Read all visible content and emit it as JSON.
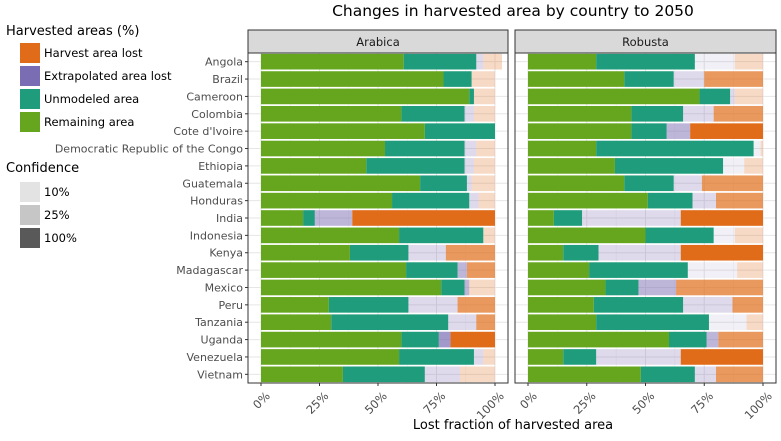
{
  "chart_data": {
    "type": "bar",
    "orientation": "horizontal",
    "stacked": true,
    "title": "Changes in harvested area by country to 2050",
    "xlabel": "Lost fraction of harvested area",
    "ylabel": "",
    "xlim": [
      0,
      1
    ],
    "x_ticks": [
      "0%",
      "25%",
      "50%",
      "75%",
      "100%"
    ],
    "grid": "on",
    "legend_position": "left",
    "facets": [
      "Arabica",
      "Robusta"
    ],
    "categories": [
      "Angola",
      "Brazil",
      "Cameroon",
      "Colombia",
      "Cote d'Ivoire",
      "Democratic Republic of the Congo",
      "Ethiopia",
      "Guatemala",
      "Honduras",
      "India",
      "Indonesia",
      "Kenya",
      "Madagascar",
      "Mexico",
      "Peru",
      "Tanzania",
      "Uganda",
      "Venezuela",
      "Vietnam"
    ],
    "legend": {
      "fill_title": "Harvested areas (%)",
      "fill_items": [
        {
          "label": "Harvest area lost",
          "color": "#e06c1a"
        },
        {
          "label": "Extrapolated area lost",
          "color": "#7b6db3"
        },
        {
          "label": "Unmodeled area",
          "color": "#1f9c7c"
        },
        {
          "label": "Remaining area",
          "color": "#66a61e"
        }
      ],
      "alpha_title": "Confidence",
      "alpha_items": [
        {
          "label": "10%",
          "color": "#e3e3e3"
        },
        {
          "label": "25%",
          "color": "#c6c6c6"
        },
        {
          "label": "100%",
          "color": "#595959"
        }
      ]
    },
    "series_order": [
      "Remaining area",
      "Unmodeled area",
      "Extrapolated area lost",
      "Harvest area lost"
    ],
    "panels": [
      {
        "name": "Arabica",
        "segments": [
          [
            [
              0.61,
              "R",
              1
            ],
            [
              0.31,
              "U",
              1
            ],
            [
              0.03,
              "E",
              0.25
            ],
            [
              0.08,
              "H",
              0.25
            ]
          ],
          [
            [
              0.78,
              "R",
              1
            ],
            [
              0.12,
              "U",
              1
            ],
            [
              0.1,
              "H",
              0.25
            ]
          ],
          [
            [
              0.89,
              "R",
              1
            ],
            [
              0.02,
              "U",
              1
            ],
            [
              0.09,
              "H",
              0.25
            ]
          ],
          [
            [
              0.6,
              "R",
              1
            ],
            [
              0.27,
              "U",
              1
            ],
            [
              0.04,
              "E",
              0.25
            ],
            [
              0.09,
              "H",
              0.25
            ]
          ],
          [
            [
              0.7,
              "R",
              1
            ],
            [
              0.3,
              "U",
              1
            ]
          ],
          [
            [
              0.53,
              "R",
              1
            ],
            [
              0.34,
              "U",
              1
            ],
            [
              0.05,
              "E",
              0.25
            ],
            [
              0.08,
              "H",
              0.25
            ]
          ],
          [
            [
              0.45,
              "R",
              1
            ],
            [
              0.42,
              "U",
              1
            ],
            [
              0.04,
              "E",
              0.25
            ],
            [
              0.09,
              "H",
              0.25
            ]
          ],
          [
            [
              0.68,
              "R",
              1
            ],
            [
              0.2,
              "U",
              1
            ],
            [
              0.02,
              "E",
              0.25
            ],
            [
              0.1,
              "H",
              0.25
            ]
          ],
          [
            [
              0.56,
              "R",
              1
            ],
            [
              0.33,
              "U",
              1
            ],
            [
              0.04,
              "E",
              0.25
            ],
            [
              0.07,
              "H",
              0.25
            ]
          ],
          [
            [
              0.18,
              "R",
              1
            ],
            [
              0.05,
              "U",
              1
            ],
            [
              0.16,
              "E",
              0.5
            ],
            [
              0.61,
              "H",
              1
            ]
          ],
          [
            [
              0.59,
              "R",
              1
            ],
            [
              0.36,
              "U",
              1
            ],
            [
              0.05,
              "H",
              0.25
            ]
          ],
          [
            [
              0.38,
              "R",
              1
            ],
            [
              0.25,
              "U",
              1
            ],
            [
              0.16,
              "E",
              0.25
            ],
            [
              0.21,
              "H",
              0.7
            ]
          ],
          [
            [
              0.62,
              "R",
              1
            ],
            [
              0.22,
              "U",
              1
            ],
            [
              0.04,
              "E",
              0.5
            ],
            [
              0.12,
              "H",
              0.7
            ]
          ],
          [
            [
              0.77,
              "R",
              1
            ],
            [
              0.1,
              "U",
              1
            ],
            [
              0.02,
              "E",
              0.5
            ],
            [
              0.11,
              "H",
              0.25
            ]
          ],
          [
            [
              0.29,
              "R",
              1
            ],
            [
              0.34,
              "U",
              1
            ],
            [
              0.21,
              "E",
              0.25
            ],
            [
              0.16,
              "H",
              0.7
            ]
          ],
          [
            [
              0.3,
              "R",
              1
            ],
            [
              0.5,
              "U",
              1
            ],
            [
              0.12,
              "E",
              0.25
            ],
            [
              0.08,
              "H",
              0.7
            ]
          ],
          [
            [
              0.6,
              "R",
              1
            ],
            [
              0.16,
              "U",
              1
            ],
            [
              0.05,
              "E",
              0.7
            ],
            [
              0.19,
              "H",
              1
            ]
          ],
          [
            [
              0.59,
              "R",
              1
            ],
            [
              0.32,
              "U",
              1
            ],
            [
              0.04,
              "E",
              0.25
            ],
            [
              0.05,
              "H",
              0.25
            ]
          ],
          [
            [
              0.35,
              "R",
              1
            ],
            [
              0.35,
              "U",
              1
            ],
            [
              0.15,
              "E",
              0.25
            ],
            [
              0.15,
              "H",
              0.25
            ]
          ]
        ]
      },
      {
        "name": "Robusta",
        "segments": [
          [
            [
              0.29,
              "R",
              1
            ],
            [
              0.42,
              "U",
              1
            ],
            [
              0.17,
              "E",
              0.1
            ],
            [
              0.12,
              "H",
              0.25
            ]
          ],
          [
            [
              0.41,
              "R",
              1
            ],
            [
              0.21,
              "U",
              1
            ],
            [
              0.13,
              "E",
              0.25
            ],
            [
              0.25,
              "H",
              0.7
            ]
          ],
          [
            [
              0.73,
              "R",
              1
            ],
            [
              0.13,
              "U",
              1
            ],
            [
              0.02,
              "E",
              0.25
            ],
            [
              0.12,
              "H",
              0.25
            ]
          ],
          [
            [
              0.44,
              "R",
              1
            ],
            [
              0.22,
              "U",
              1
            ],
            [
              0.13,
              "E",
              0.25
            ],
            [
              0.21,
              "H",
              0.7
            ]
          ],
          [
            [
              0.44,
              "R",
              1
            ],
            [
              0.15,
              "U",
              1
            ],
            [
              0.1,
              "E",
              0.5
            ],
            [
              0.31,
              "H",
              1
            ]
          ],
          [
            [
              0.29,
              "R",
              1
            ],
            [
              0.67,
              "U",
              1
            ],
            [
              0.03,
              "E",
              0.1
            ],
            [
              0.01,
              "H",
              0.25
            ]
          ],
          [
            [
              0.37,
              "R",
              1
            ],
            [
              0.46,
              "U",
              1
            ],
            [
              0.09,
              "E",
              0.1
            ],
            [
              0.08,
              "H",
              0.25
            ]
          ],
          [
            [
              0.41,
              "R",
              1
            ],
            [
              0.21,
              "U",
              1
            ],
            [
              0.12,
              "E",
              0.25
            ],
            [
              0.26,
              "H",
              0.7
            ]
          ],
          [
            [
              0.51,
              "R",
              1
            ],
            [
              0.19,
              "U",
              1
            ],
            [
              0.1,
              "E",
              0.25
            ],
            [
              0.2,
              "H",
              0.7
            ]
          ],
          [
            [
              0.11,
              "R",
              1
            ],
            [
              0.12,
              "U",
              1
            ],
            [
              0.42,
              "E",
              0.25
            ],
            [
              0.35,
              "H",
              1
            ]
          ],
          [
            [
              0.5,
              "R",
              1
            ],
            [
              0.29,
              "U",
              1
            ],
            [
              0.09,
              "E",
              0.1
            ],
            [
              0.12,
              "H",
              0.25
            ]
          ],
          [
            [
              0.15,
              "R",
              1
            ],
            [
              0.15,
              "U",
              1
            ],
            [
              0.35,
              "E",
              0.25
            ],
            [
              0.35,
              "H",
              1
            ]
          ],
          [
            [
              0.26,
              "R",
              1
            ],
            [
              0.42,
              "U",
              1
            ],
            [
              0.21,
              "E",
              0.1
            ],
            [
              0.11,
              "H",
              0.25
            ]
          ],
          [
            [
              0.33,
              "R",
              1
            ],
            [
              0.14,
              "U",
              1
            ],
            [
              0.16,
              "E",
              0.5
            ],
            [
              0.37,
              "H",
              0.7
            ]
          ],
          [
            [
              0.28,
              "R",
              1
            ],
            [
              0.38,
              "U",
              1
            ],
            [
              0.21,
              "E",
              0.25
            ],
            [
              0.13,
              "H",
              0.7
            ]
          ],
          [
            [
              0.29,
              "R",
              1
            ],
            [
              0.48,
              "U",
              1
            ],
            [
              0.16,
              "E",
              0.1
            ],
            [
              0.07,
              "H",
              0.25
            ]
          ],
          [
            [
              0.6,
              "R",
              1
            ],
            [
              0.16,
              "U",
              1
            ],
            [
              0.05,
              "E",
              0.5
            ],
            [
              0.19,
              "H",
              0.7
            ]
          ],
          [
            [
              0.15,
              "R",
              1
            ],
            [
              0.14,
              "U",
              1
            ],
            [
              0.36,
              "E",
              0.25
            ],
            [
              0.35,
              "H",
              1
            ]
          ],
          [
            [
              0.48,
              "R",
              1
            ],
            [
              0.23,
              "U",
              1
            ],
            [
              0.09,
              "E",
              0.25
            ],
            [
              0.2,
              "H",
              0.7
            ]
          ]
        ]
      }
    ]
  }
}
